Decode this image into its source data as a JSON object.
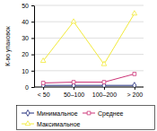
{
  "chart_data": {
    "type": "line",
    "y_label": "К-во упаковок",
    "categories": [
      "< 50",
      "50–100",
      "100–200",
      "> 200"
    ],
    "series": [
      {
        "name": "Минимальное",
        "color": "#1f2a7a",
        "marker": "diamond",
        "line_style": "solid",
        "values": [
          1,
          1,
          1,
          1
        ]
      },
      {
        "name": "Среднее",
        "color": "#cc3377",
        "marker": "square",
        "line_style": "solid",
        "values": [
          2.5,
          3,
          3,
          8
        ]
      },
      {
        "name": "Максимальное",
        "color": "#f2ea3a",
        "marker": "triangle",
        "line_style": "solid",
        "values": [
          16,
          40,
          14,
          45
        ]
      }
    ],
    "ylim": [
      0,
      50
    ],
    "yticks": [
      0,
      10,
      20,
      30,
      40,
      50
    ],
    "grid": true,
    "legend": "bottom"
  }
}
